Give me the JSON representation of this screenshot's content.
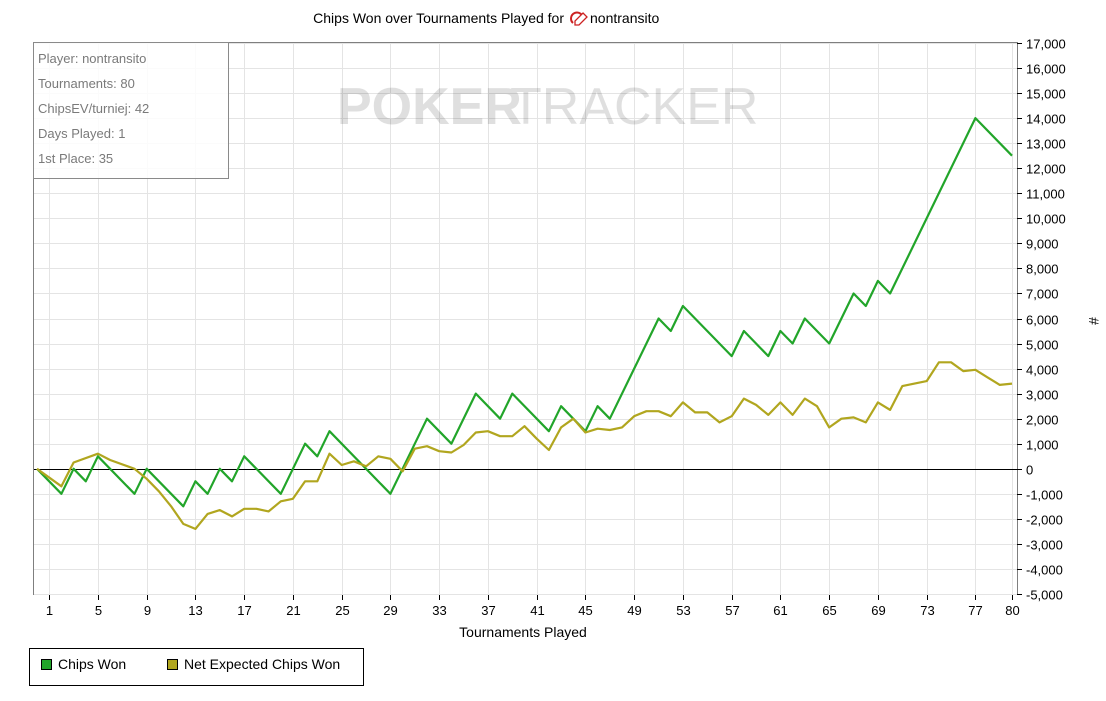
{
  "chart_data": {
    "type": "line",
    "title": "Chips Won over Tournaments Played for",
    "player_name": "nontransito",
    "watermark": {
      "left": "POKER",
      "right": "TRACKER"
    },
    "xlabel": "Tournaments Played",
    "ylabel": "#",
    "xlim": [
      0,
      80
    ],
    "ylim": [
      -5000,
      17000
    ],
    "x_ticks": [
      1,
      5,
      9,
      13,
      17,
      21,
      25,
      29,
      33,
      37,
      41,
      45,
      49,
      53,
      57,
      61,
      65,
      69,
      73,
      77,
      80
    ],
    "y_ticks": [
      -5000,
      -4000,
      -3000,
      -2000,
      -1000,
      0,
      1000,
      2000,
      3000,
      4000,
      5000,
      6000,
      7000,
      8000,
      9000,
      10000,
      11000,
      12000,
      13000,
      14000,
      15000,
      16000,
      17000
    ],
    "y_tick_labels": [
      "-5,000",
      "-4,000",
      "-3,000",
      "-2,000",
      "-1,000",
      "0",
      "1,000",
      "2,000",
      "3,000",
      "4,000",
      "5,000",
      "6,000",
      "7,000",
      "8,000",
      "9,000",
      "10,000",
      "11,000",
      "12,000",
      "13,000",
      "14,000",
      "15,000",
      "16,000",
      "17,000"
    ],
    "grid": true,
    "legend_position": "bottom-left",
    "info_box": [
      "Player: nontransito",
      "Tournaments: 80",
      "ChipsEV/turniej: 42",
      "Days Played: 1",
      "1st Place: 35"
    ],
    "series": [
      {
        "name": "Chips Won",
        "color": "#22a52a",
        "points": [
          [
            0,
            0
          ],
          [
            2,
            -1000
          ],
          [
            3,
            0
          ],
          [
            4,
            -500
          ],
          [
            5,
            500
          ],
          [
            8,
            -1000
          ],
          [
            9,
            0
          ],
          [
            12,
            -1500
          ],
          [
            13,
            -500
          ],
          [
            14,
            -1000
          ],
          [
            15,
            0
          ],
          [
            16,
            -500
          ],
          [
            17,
            500
          ],
          [
            20,
            -1000
          ],
          [
            22,
            1000
          ],
          [
            23,
            500
          ],
          [
            24,
            1500
          ],
          [
            29,
            -1000
          ],
          [
            32,
            2000
          ],
          [
            34,
            1000
          ],
          [
            36,
            3000
          ],
          [
            38,
            2000
          ],
          [
            39,
            3000
          ],
          [
            42,
            1500
          ],
          [
            43,
            2500
          ],
          [
            45,
            1500
          ],
          [
            46,
            2500
          ],
          [
            47,
            2000
          ],
          [
            51,
            6000
          ],
          [
            52,
            5500
          ],
          [
            53,
            6500
          ],
          [
            57,
            4500
          ],
          [
            58,
            5500
          ],
          [
            60,
            4500
          ],
          [
            61,
            5500
          ],
          [
            62,
            5000
          ],
          [
            63,
            6000
          ],
          [
            65,
            5000
          ],
          [
            67,
            7000
          ],
          [
            68,
            6500
          ],
          [
            69,
            7500
          ],
          [
            70,
            7000
          ],
          [
            77,
            14000
          ],
          [
            80,
            12500
          ]
        ]
      },
      {
        "name": "Net Expected Chips Won",
        "color": "#b1a61f",
        "points": [
          [
            0,
            0
          ],
          [
            2,
            -700
          ],
          [
            3,
            250
          ],
          [
            5,
            600
          ],
          [
            6,
            350
          ],
          [
            8,
            0
          ],
          [
            9,
            -400
          ],
          [
            10,
            -900
          ],
          [
            11,
            -1500
          ],
          [
            12,
            -2200
          ],
          [
            13,
            -2400
          ],
          [
            14,
            -1800
          ],
          [
            15,
            -1650
          ],
          [
            16,
            -1900
          ],
          [
            17,
            -1600
          ],
          [
            18,
            -1600
          ],
          [
            19,
            -1700
          ],
          [
            20,
            -1300
          ],
          [
            21,
            -1200
          ],
          [
            22,
            -500
          ],
          [
            23,
            -500
          ],
          [
            24,
            600
          ],
          [
            25,
            150
          ],
          [
            26,
            300
          ],
          [
            27,
            100
          ],
          [
            28,
            500
          ],
          [
            29,
            400
          ],
          [
            30,
            -100
          ],
          [
            31,
            800
          ],
          [
            32,
            900
          ],
          [
            33,
            700
          ],
          [
            34,
            650
          ],
          [
            35,
            950
          ],
          [
            36,
            1450
          ],
          [
            37,
            1500
          ],
          [
            38,
            1300
          ],
          [
            39,
            1300
          ],
          [
            40,
            1700
          ],
          [
            41,
            1200
          ],
          [
            42,
            750
          ],
          [
            43,
            1650
          ],
          [
            44,
            2000
          ],
          [
            45,
            1450
          ],
          [
            46,
            1600
          ],
          [
            47,
            1550
          ],
          [
            48,
            1650
          ],
          [
            49,
            2100
          ],
          [
            50,
            2300
          ],
          [
            51,
            2300
          ],
          [
            52,
            2100
          ],
          [
            53,
            2650
          ],
          [
            54,
            2250
          ],
          [
            55,
            2250
          ],
          [
            56,
            1850
          ],
          [
            57,
            2100
          ],
          [
            58,
            2800
          ],
          [
            59,
            2550
          ],
          [
            60,
            2150
          ],
          [
            61,
            2650
          ],
          [
            62,
            2150
          ],
          [
            63,
            2800
          ],
          [
            64,
            2500
          ],
          [
            65,
            1650
          ],
          [
            66,
            2000
          ],
          [
            67,
            2050
          ],
          [
            68,
            1850
          ],
          [
            69,
            2650
          ],
          [
            70,
            2350
          ],
          [
            71,
            3300
          ],
          [
            72,
            3400
          ],
          [
            73,
            3500
          ],
          [
            74,
            4250
          ],
          [
            75,
            4250
          ],
          [
            76,
            3900
          ],
          [
            77,
            3950
          ],
          [
            78,
            3650
          ],
          [
            79,
            3350
          ],
          [
            80,
            3400
          ]
        ]
      }
    ]
  }
}
